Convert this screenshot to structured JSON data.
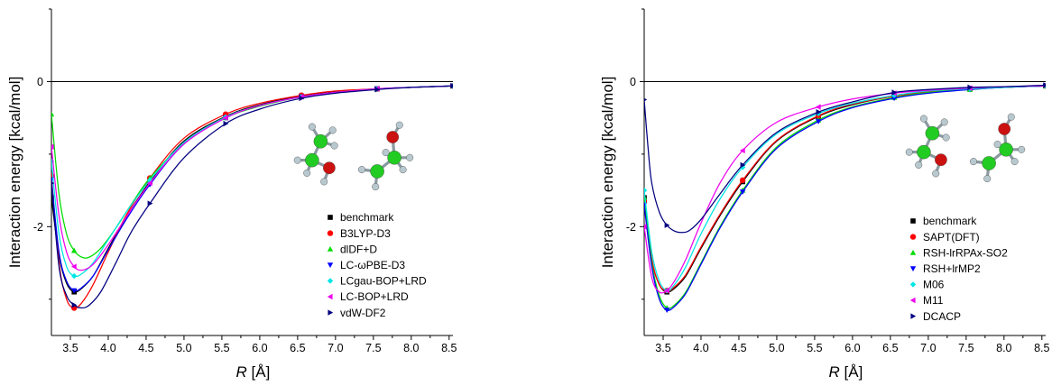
{
  "chart_data": [
    {
      "type": "line",
      "panel": "left",
      "xlabel_italic": "R",
      "xlabel_unit": " [Å]",
      "ylabel": "Interaction energy [kcal/mol]",
      "xlim": [
        3.25,
        8.55
      ],
      "ylim": [
        -3.5,
        1.0
      ],
      "xticks": [
        "3.5",
        "4.0",
        "4.5",
        "5.0",
        "5.5",
        "6.0",
        "6.5",
        "7.0",
        "7.5",
        "8.0",
        "8.5"
      ],
      "yticks": [
        {
          "v": 0,
          "label": "0"
        },
        {
          "v": -2,
          "label": "-2"
        }
      ],
      "grid": false,
      "legend_position": "lower-right",
      "inset": "molecular-dimer-image",
      "series": [
        {
          "name": "benchmark",
          "color": "#000000",
          "marker": "square",
          "x": [
            3.25,
            3.35,
            3.45,
            3.55,
            3.65,
            3.8,
            4.0,
            4.25,
            4.55,
            5.0,
            5.55,
            6.0,
            6.55,
            7.0,
            7.55,
            8.0,
            8.55
          ],
          "y": [
            -1.6,
            -2.4,
            -2.78,
            -2.9,
            -2.85,
            -2.68,
            -2.3,
            -1.85,
            -1.38,
            -0.82,
            -0.48,
            -0.32,
            -0.2,
            -0.14,
            -0.1,
            -0.08,
            -0.06
          ],
          "mx": [
            3.25,
            3.55,
            4.55,
            5.55,
            6.55,
            7.55,
            8.55
          ],
          "my": [
            -1.6,
            -2.9,
            -1.38,
            -0.48,
            -0.2,
            -0.1,
            -0.06
          ]
        },
        {
          "name": "B3LYP-D3",
          "color": "#ff0000",
          "marker": "circle",
          "x": [
            3.25,
            3.35,
            3.45,
            3.55,
            3.65,
            3.8,
            4.0,
            4.25,
            4.55,
            5.0,
            5.55,
            6.0,
            6.55,
            7.0,
            7.55,
            8.0,
            8.55
          ],
          "y": [
            -1.3,
            -2.5,
            -3.0,
            -3.12,
            -3.05,
            -2.8,
            -2.35,
            -1.82,
            -1.33,
            -0.78,
            -0.45,
            -0.3,
            -0.19,
            -0.13,
            -0.1,
            -0.08,
            -0.06
          ],
          "mx": [
            3.25,
            3.55,
            4.55,
            5.55,
            6.55,
            7.55,
            8.55
          ],
          "my": [
            -1.3,
            -3.12,
            -1.33,
            -0.45,
            -0.19,
            -0.1,
            -0.06
          ]
        },
        {
          "name": "dlDF+D",
          "color": "#00dd00",
          "marker": "triangle-up",
          "x": [
            3.25,
            3.35,
            3.45,
            3.55,
            3.65,
            3.75,
            3.9,
            4.1,
            4.3,
            4.55,
            5.0,
            5.55,
            6.0,
            6.55,
            7.0,
            7.55,
            8.0,
            8.55
          ],
          "y": [
            -0.45,
            -1.55,
            -2.1,
            -2.33,
            -2.42,
            -2.42,
            -2.3,
            -2.02,
            -1.7,
            -1.33,
            -0.85,
            -0.5,
            -0.34,
            -0.21,
            -0.15,
            -0.1,
            -0.08,
            -0.06
          ],
          "mx": [
            3.25,
            3.55,
            4.55,
            5.55,
            6.55,
            7.55,
            8.55
          ],
          "my": [
            -0.45,
            -2.33,
            -1.33,
            -0.5,
            -0.21,
            -0.1,
            -0.06
          ]
        },
        {
          "name": "LC-ωPBE-D3",
          "color": "#0000ff",
          "marker": "triangle-down",
          "x": [
            3.25,
            3.35,
            3.45,
            3.55,
            3.65,
            3.8,
            4.0,
            4.25,
            4.55,
            5.0,
            5.55,
            6.0,
            6.55,
            7.0,
            7.55,
            8.0,
            8.55
          ],
          "y": [
            -1.35,
            -2.35,
            -2.75,
            -2.88,
            -2.84,
            -2.68,
            -2.32,
            -1.88,
            -1.42,
            -0.86,
            -0.5,
            -0.33,
            -0.21,
            -0.15,
            -0.1,
            -0.08,
            -0.06
          ],
          "mx": [
            3.25,
            3.55,
            4.55,
            5.55,
            6.55,
            7.55,
            8.55
          ],
          "my": [
            -1.35,
            -2.88,
            -1.42,
            -0.5,
            -0.21,
            -0.1,
            -0.06
          ]
        },
        {
          "name": "LCgau-BOP+LRD",
          "color": "#00e5e5",
          "marker": "diamond",
          "x": [
            3.25,
            3.35,
            3.45,
            3.55,
            3.65,
            3.8,
            4.0,
            4.25,
            4.55,
            5.0,
            5.55,
            6.0,
            6.55,
            7.0,
            7.55,
            8.0,
            8.55
          ],
          "y": [
            -1.1,
            -2.1,
            -2.55,
            -2.68,
            -2.65,
            -2.5,
            -2.18,
            -1.78,
            -1.36,
            -0.84,
            -0.49,
            -0.33,
            -0.21,
            -0.15,
            -0.1,
            -0.08,
            -0.06
          ],
          "mx": [
            3.25,
            3.55,
            4.55,
            5.55,
            6.55,
            7.55,
            8.55
          ],
          "my": [
            -1.1,
            -2.68,
            -1.36,
            -0.49,
            -0.21,
            -0.1,
            -0.06
          ]
        },
        {
          "name": "LC-BOP+LRD",
          "color": "#ee00ee",
          "marker": "triangle-left",
          "x": [
            3.25,
            3.35,
            3.45,
            3.55,
            3.65,
            3.8,
            4.0,
            4.25,
            4.55,
            5.0,
            5.55,
            6.0,
            6.55,
            7.0,
            7.55,
            8.0,
            8.55
          ],
          "y": [
            -0.9,
            -1.85,
            -2.35,
            -2.55,
            -2.6,
            -2.52,
            -2.25,
            -1.85,
            -1.4,
            -0.86,
            -0.5,
            -0.33,
            -0.21,
            -0.15,
            -0.1,
            -0.08,
            -0.06
          ],
          "mx": [
            3.25,
            3.55,
            4.55,
            5.55,
            6.55,
            7.55,
            8.55
          ],
          "my": [
            -0.9,
            -2.55,
            -1.4,
            -0.5,
            -0.21,
            -0.1,
            -0.06
          ]
        },
        {
          "name": "vdW-DF2",
          "color": "#000080",
          "marker": "triangle-right",
          "x": [
            3.25,
            3.35,
            3.45,
            3.55,
            3.65,
            3.75,
            3.9,
            4.1,
            4.3,
            4.55,
            5.0,
            5.55,
            6.0,
            6.55,
            7.0,
            7.55,
            8.0,
            8.55
          ],
          "y": [
            -1.4,
            -2.55,
            -2.95,
            -3.08,
            -3.12,
            -3.08,
            -2.9,
            -2.5,
            -2.08,
            -1.68,
            -1.05,
            -0.58,
            -0.38,
            -0.23,
            -0.16,
            -0.11,
            -0.08,
            -0.06
          ],
          "mx": [
            3.25,
            3.55,
            4.55,
            5.55,
            6.55,
            7.55,
            8.55
          ],
          "my": [
            -1.4,
            -3.08,
            -1.68,
            -0.58,
            -0.23,
            -0.11,
            -0.06
          ]
        }
      ]
    },
    {
      "type": "line",
      "panel": "right",
      "xlabel_italic": "R",
      "xlabel_unit": " [Å]",
      "ylabel": "Interaction energy [kcal/mol]",
      "xlim": [
        3.25,
        8.55
      ],
      "ylim": [
        -3.5,
        1.0
      ],
      "xticks": [
        "3.5",
        "4.0",
        "4.5",
        "5.0",
        "5.5",
        "6.0",
        "6.5",
        "7.0",
        "7.5",
        "8.0",
        "8.5"
      ],
      "yticks": [
        {
          "v": 0,
          "label": "0"
        },
        {
          "v": -2,
          "label": "-2"
        }
      ],
      "grid": false,
      "legend_position": "lower-right",
      "inset": "molecular-dimer-image",
      "series": [
        {
          "name": "benchmark",
          "color": "#000000",
          "marker": "square",
          "x": [
            3.25,
            3.35,
            3.45,
            3.55,
            3.65,
            3.8,
            4.0,
            4.25,
            4.55,
            5.0,
            5.55,
            6.0,
            6.55,
            7.0,
            7.55,
            8.0,
            8.55
          ],
          "y": [
            -1.6,
            -2.45,
            -2.8,
            -2.9,
            -2.85,
            -2.68,
            -2.3,
            -1.85,
            -1.38,
            -0.82,
            -0.48,
            -0.32,
            -0.2,
            -0.14,
            -0.1,
            -0.08,
            -0.06
          ],
          "mx": [
            3.25,
            3.55,
            4.55,
            5.55,
            6.55,
            7.55,
            8.55
          ],
          "my": [
            -1.6,
            -2.9,
            -1.38,
            -0.48,
            -0.2,
            -0.1,
            -0.06
          ]
        },
        {
          "name": "SAPT(DFT)",
          "color": "#ff0000",
          "marker": "circle",
          "x": [
            3.25,
            3.35,
            3.45,
            3.55,
            3.65,
            3.8,
            4.0,
            4.25,
            4.55,
            5.0,
            5.55,
            6.0,
            6.55,
            7.0,
            7.55,
            8.0,
            8.55
          ],
          "y": [
            -1.65,
            -2.45,
            -2.8,
            -2.88,
            -2.83,
            -2.66,
            -2.28,
            -1.83,
            -1.36,
            -0.81,
            -0.47,
            -0.31,
            -0.2,
            -0.14,
            -0.1,
            -0.08,
            -0.06
          ],
          "mx": [
            3.25,
            3.55,
            4.55,
            5.55,
            6.55,
            7.55,
            8.55
          ],
          "my": [
            -1.65,
            -2.88,
            -1.36,
            -0.47,
            -0.2,
            -0.1,
            -0.06
          ]
        },
        {
          "name": "RSH-lrRPAx-SO2",
          "color": "#00dd00",
          "marker": "triangle-up",
          "x": [
            3.25,
            3.35,
            3.45,
            3.55,
            3.65,
            3.8,
            4.0,
            4.25,
            4.55,
            5.0,
            5.55,
            6.0,
            6.55,
            7.0,
            7.55,
            8.0,
            8.55
          ],
          "y": [
            -1.6,
            -2.5,
            -2.95,
            -3.12,
            -3.08,
            -2.9,
            -2.5,
            -2.0,
            -1.5,
            -0.9,
            -0.53,
            -0.35,
            -0.22,
            -0.15,
            -0.11,
            -0.08,
            -0.06
          ],
          "mx": [
            3.25,
            3.55,
            4.55,
            5.55,
            6.55,
            7.55,
            8.55
          ],
          "my": [
            -1.6,
            -3.12,
            -1.5,
            -0.53,
            -0.22,
            -0.11,
            -0.06
          ]
        },
        {
          "name": "RSH+lrMP2",
          "color": "#0000ff",
          "marker": "triangle-down",
          "x": [
            3.25,
            3.35,
            3.45,
            3.55,
            3.65,
            3.8,
            4.0,
            4.25,
            4.55,
            5.0,
            5.55,
            6.0,
            6.55,
            7.0,
            7.55,
            8.0,
            8.55
          ],
          "y": [
            -1.7,
            -2.55,
            -3.0,
            -3.15,
            -3.1,
            -2.92,
            -2.52,
            -2.02,
            -1.52,
            -0.92,
            -0.55,
            -0.36,
            -0.23,
            -0.16,
            -0.11,
            -0.08,
            -0.06
          ],
          "mx": [
            3.25,
            3.55,
            4.55,
            5.55,
            6.55,
            7.55,
            8.55
          ],
          "my": [
            -1.7,
            -3.15,
            -1.52,
            -0.55,
            -0.23,
            -0.11,
            -0.06
          ]
        },
        {
          "name": "M06",
          "color": "#00e5e5",
          "marker": "diamond",
          "x": [
            3.25,
            3.35,
            3.45,
            3.55,
            3.65,
            3.8,
            4.0,
            4.25,
            4.55,
            5.0,
            5.55,
            6.0,
            6.55,
            7.0,
            7.55,
            8.0,
            8.55
          ],
          "y": [
            -1.5,
            -2.35,
            -2.75,
            -2.88,
            -2.8,
            -2.55,
            -2.1,
            -1.62,
            -1.18,
            -0.72,
            -0.44,
            -0.3,
            -0.19,
            -0.13,
            -0.1,
            -0.08,
            -0.06
          ],
          "mx": [
            3.25,
            3.55,
            4.55,
            5.55,
            6.55,
            7.55,
            8.55
          ],
          "my": [
            -1.5,
            -2.88,
            -1.18,
            -0.44,
            -0.19,
            -0.1,
            -0.06
          ]
        },
        {
          "name": "M11",
          "color": "#ee00ee",
          "marker": "triangle-left",
          "x": [
            3.25,
            3.35,
            3.45,
            3.55,
            3.65,
            3.8,
            4.0,
            4.25,
            4.55,
            5.0,
            5.55,
            6.0,
            6.55,
            7.0,
            7.55,
            8.0,
            8.55
          ],
          "y": [
            -2.0,
            -2.7,
            -2.9,
            -2.88,
            -2.75,
            -2.45,
            -1.95,
            -1.4,
            -0.95,
            -0.56,
            -0.35,
            -0.24,
            -0.16,
            -0.12,
            -0.09,
            -0.07,
            -0.06
          ],
          "mx": [
            3.25,
            3.55,
            4.55,
            5.55,
            6.55,
            7.55,
            8.55
          ],
          "my": [
            -2.0,
            -2.88,
            -0.95,
            -0.35,
            -0.16,
            -0.09,
            -0.06
          ]
        },
        {
          "name": "DCACP",
          "color": "#000080",
          "marker": "triangle-right",
          "x": [
            3.25,
            3.3,
            3.35,
            3.45,
            3.55,
            3.65,
            3.75,
            3.85,
            4.0,
            4.25,
            4.55,
            5.0,
            5.55,
            6.0,
            6.55,
            7.0,
            7.55,
            8.0,
            8.55
          ],
          "y": [
            -0.25,
            -0.9,
            -1.4,
            -1.8,
            -1.98,
            -2.06,
            -2.08,
            -2.05,
            -1.9,
            -1.55,
            -1.15,
            -0.7,
            -0.42,
            -0.28,
            -0.15,
            -0.11,
            -0.08,
            -0.07,
            -0.05
          ],
          "mx": [
            3.25,
            3.55,
            4.55,
            5.55,
            6.55,
            7.55,
            8.55
          ],
          "my": [
            -0.25,
            -1.98,
            -1.15,
            -0.42,
            -0.15,
            -0.08,
            -0.05
          ]
        }
      ]
    }
  ]
}
